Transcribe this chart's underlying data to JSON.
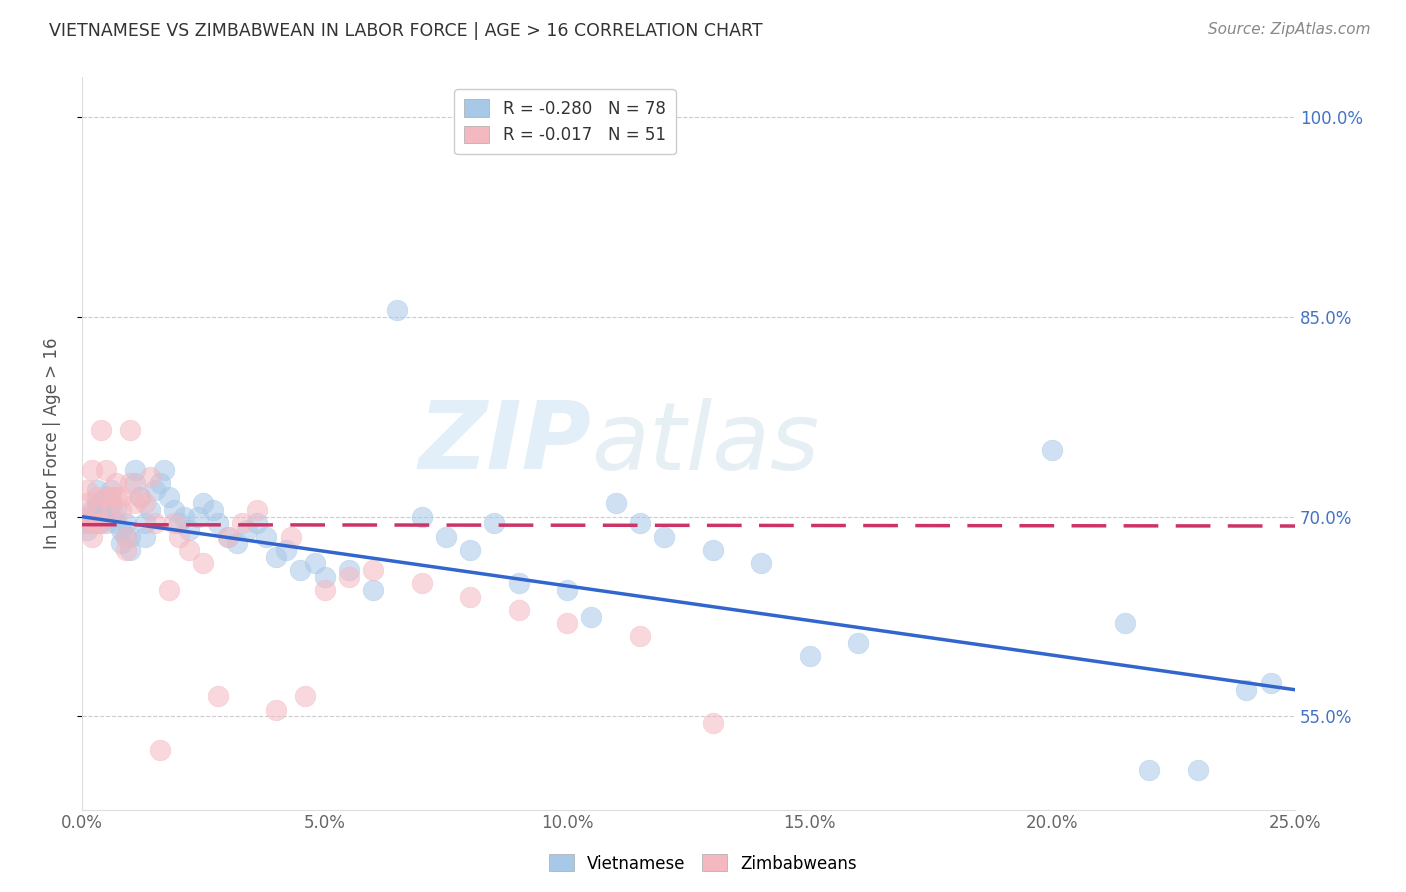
{
  "title": "VIETNAMESE VS ZIMBABWEAN IN LABOR FORCE | AGE > 16 CORRELATION CHART",
  "source": "Source: ZipAtlas.com",
  "ylabel": "In Labor Force | Age > 16",
  "xlabel_ticks": [
    "0.0%",
    "5.0%",
    "10.0%",
    "15.0%",
    "20.0%",
    "25.0%"
  ],
  "xlabel_vals": [
    0.0,
    0.05,
    0.1,
    0.15,
    0.2,
    0.25
  ],
  "ylabel_ticks": [
    "55.0%",
    "70.0%",
    "85.0%",
    "100.0%"
  ],
  "ylabel_vals": [
    0.55,
    0.7,
    0.85,
    1.0
  ],
  "xlim": [
    0.0,
    0.25
  ],
  "ylim": [
    0.48,
    1.03
  ],
  "blue_color": "#a8c8e8",
  "pink_color": "#f4b8c0",
  "blue_line_color": "#3366cc",
  "pink_line_color": "#cc3366",
  "watermark_text": "ZIP",
  "watermark_text2": "atlas",
  "blue_scatter_x": [
    0.0005,
    0.001,
    0.0015,
    0.002,
    0.002,
    0.0025,
    0.003,
    0.003,
    0.003,
    0.0035,
    0.004,
    0.004,
    0.0045,
    0.005,
    0.005,
    0.005,
    0.006,
    0.006,
    0.006,
    0.007,
    0.007,
    0.008,
    0.008,
    0.009,
    0.009,
    0.01,
    0.01,
    0.011,
    0.011,
    0.012,
    0.013,
    0.013,
    0.014,
    0.015,
    0.016,
    0.017,
    0.018,
    0.019,
    0.02,
    0.021,
    0.022,
    0.024,
    0.025,
    0.027,
    0.028,
    0.03,
    0.032,
    0.034,
    0.036,
    0.038,
    0.04,
    0.042,
    0.045,
    0.048,
    0.05,
    0.055,
    0.06,
    0.065,
    0.07,
    0.075,
    0.08,
    0.085,
    0.09,
    0.1,
    0.105,
    0.11,
    0.115,
    0.12,
    0.13,
    0.14,
    0.15,
    0.16,
    0.2,
    0.215,
    0.22,
    0.23,
    0.24,
    0.245
  ],
  "blue_scatter_y": [
    0.695,
    0.69,
    0.7,
    0.695,
    0.705,
    0.7,
    0.705,
    0.71,
    0.72,
    0.695,
    0.7,
    0.71,
    0.705,
    0.695,
    0.705,
    0.715,
    0.7,
    0.71,
    0.72,
    0.695,
    0.705,
    0.68,
    0.69,
    0.685,
    0.695,
    0.675,
    0.685,
    0.725,
    0.735,
    0.715,
    0.685,
    0.695,
    0.705,
    0.72,
    0.725,
    0.735,
    0.715,
    0.705,
    0.695,
    0.7,
    0.69,
    0.7,
    0.71,
    0.705,
    0.695,
    0.685,
    0.68,
    0.69,
    0.695,
    0.685,
    0.67,
    0.675,
    0.66,
    0.665,
    0.655,
    0.66,
    0.645,
    0.855,
    0.7,
    0.685,
    0.675,
    0.695,
    0.65,
    0.645,
    0.625,
    0.71,
    0.695,
    0.685,
    0.675,
    0.665,
    0.595,
    0.605,
    0.75,
    0.62,
    0.51,
    0.51,
    0.57,
    0.575
  ],
  "pink_scatter_x": [
    0.0005,
    0.001,
    0.001,
    0.0015,
    0.002,
    0.002,
    0.002,
    0.003,
    0.003,
    0.003,
    0.004,
    0.004,
    0.005,
    0.005,
    0.006,
    0.006,
    0.007,
    0.007,
    0.008,
    0.008,
    0.009,
    0.009,
    0.01,
    0.01,
    0.011,
    0.012,
    0.013,
    0.014,
    0.015,
    0.016,
    0.018,
    0.019,
    0.02,
    0.022,
    0.025,
    0.028,
    0.03,
    0.033,
    0.036,
    0.04,
    0.043,
    0.046,
    0.05,
    0.055,
    0.06,
    0.07,
    0.08,
    0.09,
    0.1,
    0.115,
    0.13
  ],
  "pink_scatter_y": [
    0.7,
    0.71,
    0.72,
    0.695,
    0.685,
    0.695,
    0.735,
    0.695,
    0.705,
    0.715,
    0.765,
    0.695,
    0.715,
    0.735,
    0.705,
    0.715,
    0.715,
    0.725,
    0.705,
    0.715,
    0.675,
    0.685,
    0.725,
    0.765,
    0.71,
    0.715,
    0.71,
    0.73,
    0.695,
    0.525,
    0.645,
    0.695,
    0.685,
    0.675,
    0.665,
    0.565,
    0.685,
    0.695,
    0.705,
    0.555,
    0.685,
    0.565,
    0.645,
    0.655,
    0.66,
    0.65,
    0.64,
    0.63,
    0.62,
    0.61,
    0.545
  ],
  "blue_line_x0": 0.0,
  "blue_line_x1": 0.25,
  "blue_line_y0": 0.7,
  "blue_line_y1": 0.57,
  "pink_line_x0": 0.0,
  "pink_line_x1": 0.25,
  "pink_line_y0": 0.694,
  "pink_line_y1": 0.693
}
